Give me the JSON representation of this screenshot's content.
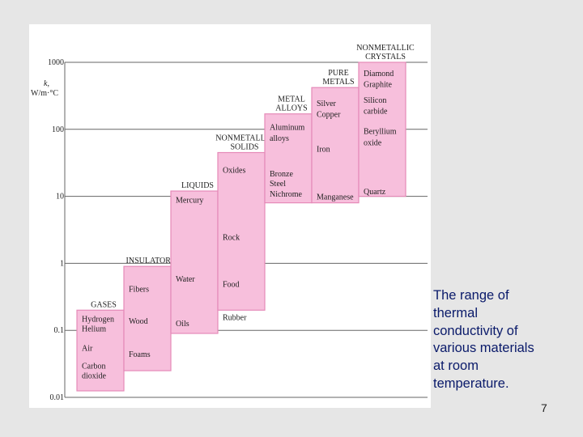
{
  "slide": {
    "caption": "The range of thermal conductivity of various materials at room temperature.",
    "page_number": "7"
  },
  "colors": {
    "bar_fill": "#f7bfdc",
    "bar_edge": "#e58ab8",
    "gridline": "#666666",
    "caption_text": "#0a1a6a"
  },
  "chart_data": {
    "type": "bar",
    "scale": "log",
    "ylabel": [
      "k,",
      "W/m·°C"
    ],
    "ylim": [
      0.01,
      1000
    ],
    "y_ticks": [
      {
        "value": 1000,
        "label": "1000"
      },
      {
        "value": 100,
        "label": "100"
      },
      {
        "value": 10,
        "label": "10"
      },
      {
        "value": 1,
        "label": "1"
      },
      {
        "value": 0.1,
        "label": "0.1"
      },
      {
        "value": 0.01,
        "label": "0.01"
      }
    ],
    "categories": [
      {
        "name": "GASES",
        "label_lines": [
          "GASES"
        ],
        "range": [
          0.0125,
          0.2
        ],
        "materials": [
          {
            "name": "Hydrogen",
            "k": 0.15
          },
          {
            "name": "Helium",
            "k": 0.125
          },
          {
            "name": "Air",
            "k": 0.055
          },
          {
            "name": "Carbon",
            "k": 0.03
          },
          {
            "name": "dioxide",
            "k": 0.023
          }
        ]
      },
      {
        "name": "INSULATORS",
        "label_lines": [
          "INSULATORS"
        ],
        "range": [
          0.025,
          0.9
        ],
        "materials": [
          {
            "name": "Fibers",
            "k": 0.42
          },
          {
            "name": "Wood",
            "k": 0.14
          },
          {
            "name": "Foams",
            "k": 0.045
          }
        ]
      },
      {
        "name": "LIQUIDS",
        "label_lines": [
          "LIQUIDS"
        ],
        "range": [
          0.09,
          12
        ],
        "materials": [
          {
            "name": "Mercury",
            "k": 9
          },
          {
            "name": "Water",
            "k": 0.6
          },
          {
            "name": "Oils",
            "k": 0.13
          }
        ]
      },
      {
        "name": "NONMETALLIC SOLIDS",
        "label_lines": [
          "NONMETALLIC",
          "SOLIDS"
        ],
        "range": [
          0.2,
          45
        ],
        "materials": [
          {
            "name": "Oxides",
            "k": 25
          },
          {
            "name": "Rock",
            "k": 2.5
          },
          {
            "name": "Food",
            "k": 0.5
          },
          {
            "name": "Rubber",
            "k": 0.16
          }
        ]
      },
      {
        "name": "METAL ALLOYS",
        "label_lines": [
          "METAL",
          "ALLOYS"
        ],
        "range": [
          8,
          170
        ],
        "materials": [
          {
            "name": "Aluminum",
            "k": 110
          },
          {
            "name": "alloys",
            "k": 75
          },
          {
            "name": "Bronze",
            "k": 22
          },
          {
            "name": "Steel",
            "k": 16
          },
          {
            "name": "Nichrome",
            "k": 11
          }
        ]
      },
      {
        "name": "PURE METALS",
        "label_lines": [
          "PURE",
          "METALS"
        ],
        "range": [
          8,
          420
        ],
        "materials": [
          {
            "name": "Silver",
            "k": 250
          },
          {
            "name": "Copper",
            "k": 170
          },
          {
            "name": "Iron",
            "k": 52
          },
          {
            "name": "Manganese",
            "k": 10
          }
        ]
      },
      {
        "name": "NONMETALLIC CRYSTALS",
        "label_lines": [
          "NONMETALLIC",
          "CRYSTALS"
        ],
        "range": [
          10,
          1000
        ],
        "materials": [
          {
            "name": "Diamond",
            "k": 700
          },
          {
            "name": "Graphite",
            "k": 480
          },
          {
            "name": "Silicon",
            "k": 280
          },
          {
            "name": "carbide",
            "k": 190
          },
          {
            "name": "Beryllium",
            "k": 95
          },
          {
            "name": "oxide",
            "k": 65
          },
          {
            "name": "Quartz",
            "k": 12
          }
        ]
      }
    ]
  }
}
